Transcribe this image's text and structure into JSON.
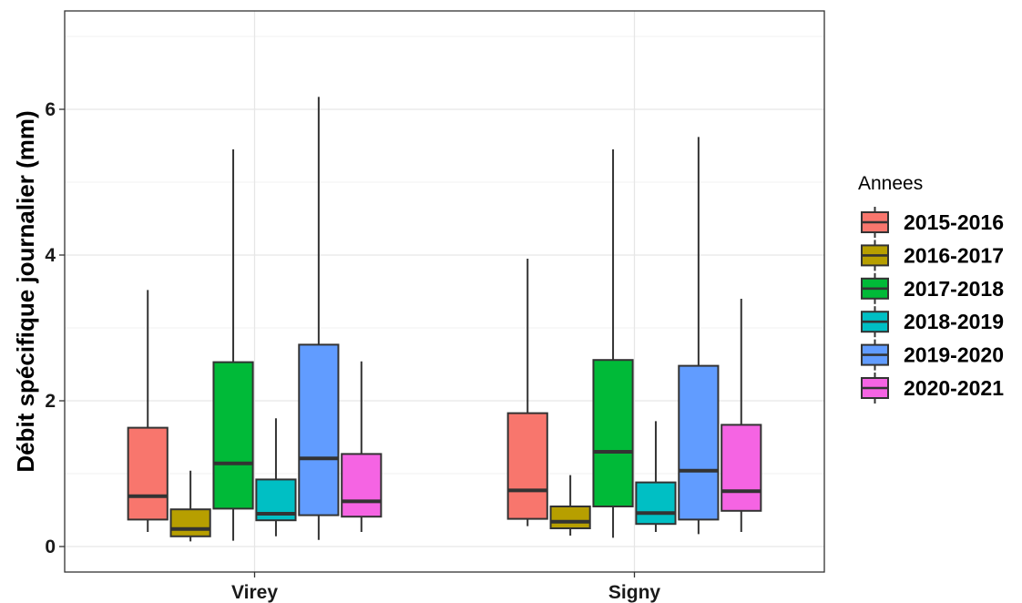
{
  "chart_data": {
    "type": "boxplot",
    "title": "",
    "xlabel": "",
    "ylabel": "Débit spécifique journalier (mm)",
    "ylim": [
      -0.35,
      7.35
    ],
    "yticks": [
      0,
      2,
      4,
      6
    ],
    "grid": true,
    "legend_position": "right",
    "legend_title": "Annees",
    "categories": [
      "Virey",
      "Signy"
    ],
    "series": [
      {
        "name": "2015-2016",
        "color": "#F8766D",
        "values": [
          {
            "min": 0.2,
            "q1": 0.37,
            "median": 0.69,
            "q3": 1.63,
            "max": 3.52
          },
          {
            "min": 0.28,
            "q1": 0.38,
            "median": 0.77,
            "q3": 1.83,
            "max": 3.95
          }
        ]
      },
      {
        "name": "2016-2017",
        "color": "#B79F00",
        "values": [
          {
            "min": 0.07,
            "q1": 0.14,
            "median": 0.24,
            "q3": 0.51,
            "max": 1.04
          },
          {
            "min": 0.15,
            "q1": 0.25,
            "median": 0.34,
            "q3": 0.55,
            "max": 0.98
          }
        ]
      },
      {
        "name": "2017-2018",
        "color": "#00BA38",
        "values": [
          {
            "min": 0.08,
            "q1": 0.52,
            "median": 1.14,
            "q3": 2.53,
            "max": 5.45
          },
          {
            "min": 0.12,
            "q1": 0.55,
            "median": 1.3,
            "q3": 2.56,
            "max": 5.45
          }
        ]
      },
      {
        "name": "2018-2019",
        "color": "#00BFC4",
        "values": [
          {
            "min": 0.14,
            "q1": 0.36,
            "median": 0.45,
            "q3": 0.92,
            "max": 1.76
          },
          {
            "min": 0.2,
            "q1": 0.31,
            "median": 0.46,
            "q3": 0.88,
            "max": 1.72
          }
        ]
      },
      {
        "name": "2019-2020",
        "color": "#619CFF",
        "values": [
          {
            "min": 0.09,
            "q1": 0.43,
            "median": 1.21,
            "q3": 2.77,
            "max": 6.17
          },
          {
            "min": 0.17,
            "q1": 0.37,
            "median": 1.04,
            "q3": 2.48,
            "max": 5.62
          }
        ]
      },
      {
        "name": "2020-2021",
        "color": "#F564E3",
        "values": [
          {
            "min": 0.2,
            "q1": 0.41,
            "median": 0.62,
            "q3": 1.27,
            "max": 2.54
          },
          {
            "min": 0.2,
            "q1": 0.49,
            "median": 0.76,
            "q3": 1.67,
            "max": 3.4
          }
        ]
      }
    ]
  }
}
